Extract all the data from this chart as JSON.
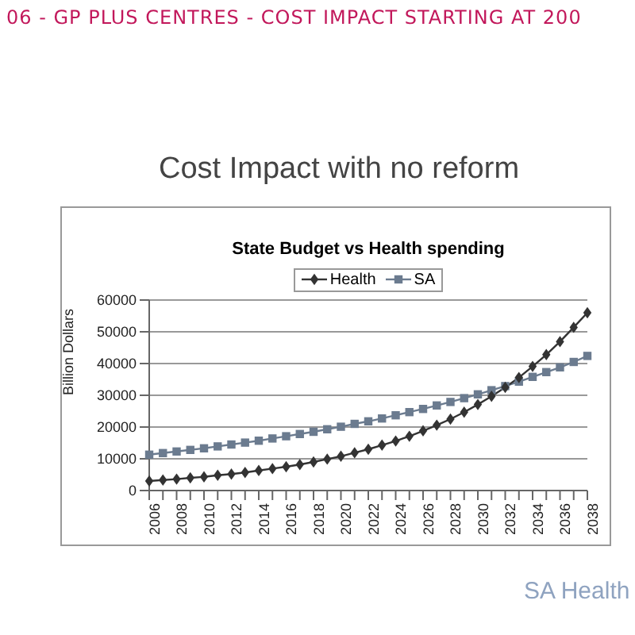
{
  "chart_data": {
    "type": "line",
    "title": "State Budget vs Health spending",
    "ylabel": "Billion Dollars",
    "categories": [
      "2006",
      null,
      "2008",
      null,
      "2010",
      null,
      "2012",
      null,
      "2014",
      null,
      "2016",
      null,
      "2018",
      null,
      "2020",
      null,
      "2022",
      null,
      "2024",
      null,
      "2026",
      null,
      "2028",
      null,
      "2030",
      null,
      "2032",
      null,
      "2034",
      null,
      "2036",
      null,
      "2038"
    ],
    "series": [
      {
        "name": "Health",
        "color": "#333333",
        "marker": "diamond",
        "values": [
          3000,
          3300,
          3600,
          4000,
          4300,
          4800,
          5200,
          5700,
          6300,
          6900,
          7500,
          8200,
          9000,
          9900,
          10800,
          11900,
          13000,
          14300,
          15600,
          17100,
          18800,
          20600,
          22500,
          24700,
          27100,
          29700,
          32500,
          35600,
          39100,
          42800,
          46900,
          51400,
          56000
        ]
      },
      {
        "name": "SA",
        "color": "#6b7b8f",
        "marker": "square",
        "values": [
          11300,
          11800,
          12300,
          12800,
          13300,
          13900,
          14500,
          15100,
          15700,
          16400,
          17100,
          17800,
          18500,
          19300,
          20100,
          21000,
          21800,
          22700,
          23700,
          24700,
          25700,
          26800,
          27900,
          29100,
          30300,
          31600,
          32900,
          34300,
          35800,
          37300,
          38800,
          40500,
          42400
        ]
      }
    ],
    "ylim": [
      0,
      60000
    ],
    "yticks": [
      0,
      10000,
      20000,
      30000,
      40000,
      50000,
      60000
    ],
    "grid": "y",
    "legend": "top",
    "annotations": [
      "06 - GP PLUS CENTRES - COST IMPACT STARTING AT 200",
      "Cost Impact with no reform",
      "SA Health"
    ]
  }
}
